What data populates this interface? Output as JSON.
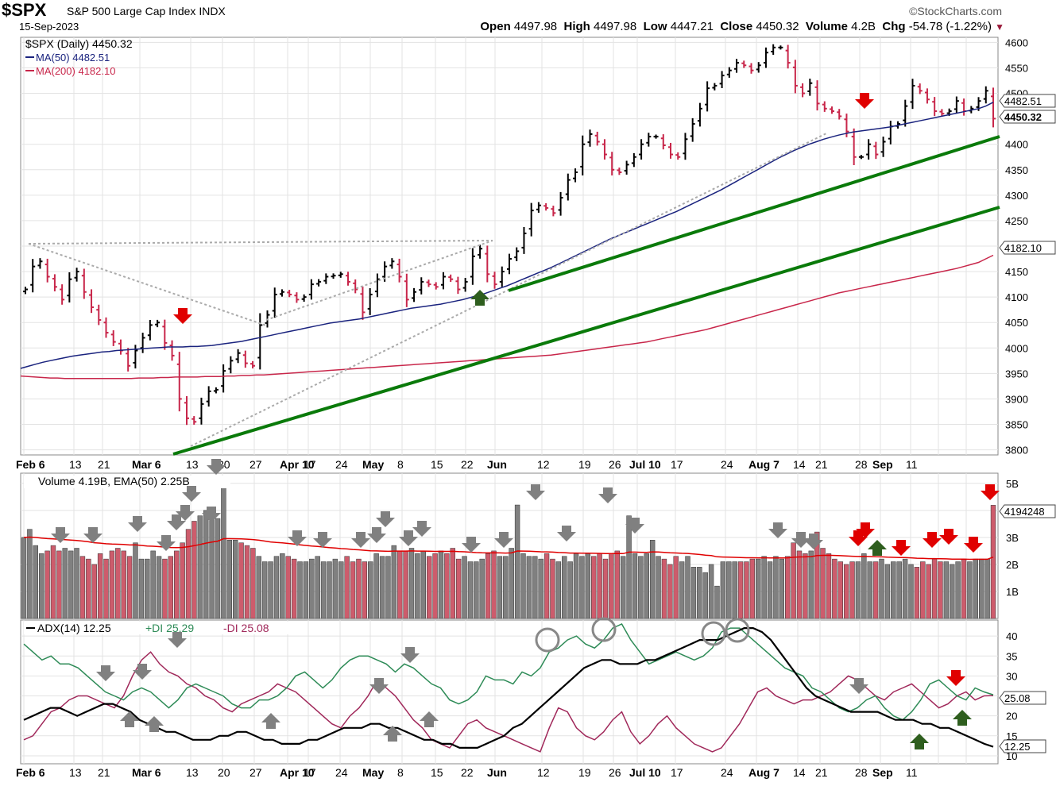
{
  "header": {
    "symbol": "$SPX",
    "name": "S&P 500 Large Cap Index",
    "exchange": "INDX",
    "date": "15-Sep-2023",
    "brand": "©StockCharts.com",
    "open_label": "Open",
    "open": "4497.98",
    "high_label": "High",
    "high": "4497.98",
    "low_label": "Low",
    "low": "4447.21",
    "close_label": "Close",
    "close": "4450.32",
    "volume_label": "Volume",
    "volume": "4.2B",
    "chg_label": "Chg",
    "chg": "-54.78 (-1.22%)"
  },
  "colors": {
    "up": "#000000",
    "down": "#c8264a",
    "ma50": "#1a237e",
    "ma200": "#c8264a",
    "trend": "#0a7a0a",
    "adx": "#000000",
    "plus_di": "#2e8b57",
    "minus_di": "#a0285a",
    "vol_up": "#808080",
    "vol_down": "#cd5c6c"
  },
  "chart_data": [
    {
      "type": "ohlc",
      "legend": [
        "$SPX (Daily) 4450.32",
        "MA(50) 4482.51",
        "MA(200) 4182.10"
      ],
      "x_ticks": [
        "Feb 6",
        "13",
        "21",
        "Mar 6",
        "13",
        "20",
        "27",
        "Apr 10",
        "17",
        "24",
        "May",
        "8",
        "15",
        "22",
        "Jun",
        "12",
        "19",
        "26",
        "Jul 10",
        "17",
        "24",
        "Aug 7",
        "14",
        "21",
        "28",
        "Sep",
        "11"
      ],
      "y_ticks": [
        3800,
        3850,
        3900,
        3950,
        4000,
        4050,
        4100,
        4150,
        4200,
        4250,
        4300,
        4350,
        4400,
        4450,
        4500,
        4550,
        4600
      ],
      "ylim": [
        3790,
        4610
      ],
      "price_tags": [
        "4482.51",
        "4450.32",
        "4182.10"
      ],
      "closes": [
        4115,
        4160,
        4170,
        4140,
        4120,
        4095,
        4135,
        4150,
        4110,
        4080,
        4055,
        4030,
        4012,
        3995,
        3965,
        3995,
        4020,
        4045,
        4050,
        4010,
        3985,
        3900,
        3862,
        3855,
        3890,
        3915,
        3918,
        3955,
        3975,
        3990,
        3970,
        3965,
        4045,
        4065,
        4105,
        4110,
        4105,
        4095,
        4100,
        4125,
        4130,
        4140,
        4142,
        4145,
        4130,
        4115,
        4070,
        4105,
        4135,
        4160,
        4170,
        4140,
        4095,
        4110,
        4130,
        4125,
        4120,
        4140,
        4135,
        4115,
        4130,
        4180,
        4195,
        4145,
        4125,
        4150,
        4175,
        4190,
        4225,
        4270,
        4280,
        4275,
        4265,
        4295,
        4330,
        4345,
        4400,
        4420,
        4405,
        4380,
        4350,
        4345,
        4360,
        4375,
        4400,
        4415,
        4415,
        4398,
        4380,
        4375,
        4410,
        4440,
        4470,
        4510,
        4515,
        4535,
        4545,
        4560,
        4555,
        4545,
        4555,
        4580,
        4590,
        4590,
        4560,
        4515,
        4500,
        4520,
        4480,
        4470,
        4465,
        4455,
        4425,
        4375,
        4375,
        4400,
        4380,
        4405,
        4435,
        4440,
        4475,
        4515,
        4505,
        4488,
        4465,
        4460,
        4465,
        4485,
        4465,
        4470,
        4485,
        4505,
        4450.32
      ],
      "ma50": [
        3960,
        3964,
        3968,
        3972,
        3975,
        3978,
        3981,
        3984,
        3986,
        3988,
        3990,
        3992,
        3993,
        3995,
        3996,
        3997,
        3998,
        3999,
        4000,
        4001,
        4002,
        4002,
        4002,
        4003,
        4003,
        4004,
        4005,
        4007,
        4009,
        4011,
        4013,
        4016,
        4019,
        4022,
        4025,
        4028,
        4031,
        4034,
        4037,
        4040,
        4043,
        4046,
        4049,
        4051,
        4053,
        4055,
        4057,
        4060,
        4063,
        4066,
        4069,
        4072,
        4075,
        4078,
        4080,
        4082,
        4084,
        4086,
        4089,
        4092,
        4095,
        4099,
        4103,
        4107,
        4112,
        4117,
        4122,
        4128,
        4134,
        4140,
        4146,
        4152,
        4158,
        4165,
        4172,
        4179,
        4186,
        4193,
        4200,
        4207,
        4214,
        4220,
        4226,
        4232,
        4238,
        4244,
        4250,
        4256,
        4262,
        4268,
        4275,
        4282,
        4289,
        4296,
        4303,
        4310,
        4318,
        4326,
        4334,
        4342,
        4350,
        4358,
        4366,
        4374,
        4381,
        4388,
        4394,
        4400,
        4405,
        4410,
        4414,
        4418,
        4421,
        4424,
        4426,
        4428,
        4430,
        4432,
        4434,
        4437,
        4440,
        4443,
        4446,
        4449,
        4452,
        4455,
        4458,
        4461,
        4464,
        4467,
        4470,
        4475,
        4482.51
      ],
      "ma200": [
        3945,
        3944,
        3943,
        3942,
        3941,
        3941,
        3940,
        3940,
        3940,
        3940,
        3940,
        3940,
        3940,
        3940,
        3940,
        3940,
        3941,
        3941,
        3941,
        3942,
        3942,
        3943,
        3943,
        3943,
        3943,
        3944,
        3944,
        3944,
        3945,
        3945,
        3946,
        3946,
        3947,
        3947,
        3948,
        3949,
        3950,
        3951,
        3952,
        3953,
        3954,
        3955,
        3956,
        3957,
        3958,
        3959,
        3960,
        3961,
        3962,
        3963,
        3964,
        3965,
        3966,
        3967,
        3968,
        3969,
        3970,
        3971,
        3972,
        3973,
        3974,
        3975,
        3976,
        3977,
        3978,
        3979,
        3980,
        3981,
        3982,
        3983,
        3984,
        3985,
        3986,
        3988,
        3990,
        3992,
        3994,
        3996,
        3998,
        4000,
        4002,
        4004,
        4006,
        4008,
        4010,
        4012,
        4015,
        4018,
        4021,
        4024,
        4027,
        4030,
        4033,
        4036,
        4040,
        4044,
        4048,
        4052,
        4056,
        4060,
        4064,
        4068,
        4072,
        4076,
        4080,
        4084,
        4088,
        4092,
        4096,
        4100,
        4104,
        4108,
        4111,
        4114,
        4117,
        4120,
        4123,
        4126,
        4129,
        4132,
        4135,
        4138,
        4141,
        4144,
        4147,
        4150,
        4153,
        4156,
        4160,
        4164,
        4168,
        4175,
        4182.1
      ]
    },
    {
      "type": "bar",
      "legend": "Volume 4.19B, EMA(50) 2.25B",
      "y_ticks": [
        "1B",
        "2B",
        "3B",
        "4B",
        "5B"
      ],
      "ylim": [
        0,
        5.2
      ],
      "value_tag": "4194248",
      "values": [
        3.0,
        3.3,
        2.7,
        2.4,
        2.5,
        2.7,
        2.5,
        2.6,
        2.5,
        2.6,
        2.3,
        2.2,
        2.0,
        2.4,
        2.2,
        2.5,
        2.6,
        2.5,
        2.3,
        2.8,
        2.2,
        2.2,
        2.5,
        2.3,
        2.2,
        2.3,
        2.5,
        2.8,
        3.3,
        3.6,
        3.8,
        4.0,
        3.7,
        3.7,
        5.2,
        2.9,
        2.9,
        2.8,
        2.7,
        2.6,
        2.3,
        2.1,
        2.1,
        2.3,
        2.4,
        2.3,
        2.2,
        2.1,
        2.1,
        2.2,
        2.3,
        2.1,
        2.1,
        2.2,
        2.1,
        2.3,
        2.1,
        2.2,
        2.1,
        2.1,
        2.4,
        2.3,
        2.3,
        2.7,
        2.5,
        2.5,
        2.6,
        2.4,
        2.5,
        2.3,
        2.4,
        2.5,
        2.4,
        2.6,
        2.2,
        2.3,
        2.1,
        2.1,
        2.2,
        2.4,
        2.5,
        2.3,
        2.3,
        2.6,
        4.2,
        2.4,
        2.3,
        2.3,
        2.2,
        2.4,
        2.2,
        2.1,
        2.3,
        2.1,
        2.4,
        2.3,
        2.4,
        2.3,
        2.4,
        2.2,
        2.4,
        2.5,
        2.3,
        3.8,
        2.4,
        2.3,
        2.4,
        2.9,
        2.3,
        2.2,
        2.0,
        2.3,
        2.1,
        2.3,
        1.9,
        1.9,
        1.7,
        2.0,
        1.2,
        2.1,
        2.1,
        2.1,
        2.1,
        2.1,
        2.2,
        2.2,
        2.3,
        2.1,
        2.3,
        2.2,
        2.3,
        2.8,
        2.5,
        2.4,
        2.5,
        3.2,
        2.6,
        2.4,
        2.2,
        2.1,
        2.0,
        2.1,
        2.1,
        2.4,
        2.1,
        2.1,
        2.2,
        2.0,
        2.1,
        2.1,
        2.2,
        2.0,
        1.9,
        2.1,
        2.0,
        2.2,
        2.1,
        2.1,
        2.0,
        2.1,
        2.2,
        2.1,
        2.2,
        2.2,
        2.2,
        4.19
      ]
    },
    {
      "type": "line",
      "legend": [
        "ADX(14) 12.25",
        "+DI 25.29",
        "-DI 25.08"
      ],
      "y_ticks": [
        10,
        15,
        20,
        25,
        30,
        35,
        40
      ],
      "ylim": [
        8,
        44
      ],
      "value_tags": [
        "25.08",
        "12.25"
      ],
      "series": [
        {
          "name": "ADX(14) 12.25",
          "values": [
            19,
            20,
            21,
            22,
            22,
            21,
            20,
            21,
            22,
            23,
            23,
            22,
            21,
            19,
            18,
            17,
            16,
            16,
            15,
            14,
            14,
            14,
            15,
            15,
            16,
            16,
            15,
            14,
            14,
            13,
            13,
            13,
            14,
            14,
            15,
            16,
            17,
            17,
            17,
            18,
            18,
            17,
            17,
            16,
            15,
            14,
            14,
            13,
            13,
            12,
            12,
            12,
            13,
            14,
            15,
            17,
            18,
            20,
            22,
            24,
            26,
            28,
            30,
            32,
            33,
            34,
            34,
            33,
            33,
            33,
            34,
            34,
            35,
            36,
            37,
            38,
            39,
            39,
            39,
            40,
            41,
            42,
            42,
            41,
            39,
            36,
            33,
            30,
            27,
            25,
            24,
            23,
            22,
            21,
            21,
            21,
            21,
            20,
            19,
            19,
            19,
            18,
            18,
            17,
            17,
            16,
            15,
            14,
            13,
            12.25
          ]
        },
        {
          "name": "+DI 25.29",
          "values": [
            38,
            36,
            34,
            35,
            33,
            33,
            32,
            30,
            28,
            26,
            25,
            24,
            26,
            27,
            26,
            24,
            22,
            24,
            27,
            28,
            27,
            26,
            25,
            23,
            22,
            22,
            24,
            24,
            25,
            27,
            30,
            31,
            29,
            27,
            29,
            32,
            34,
            35,
            35,
            34,
            33,
            31,
            33,
            32,
            30,
            28,
            27,
            24,
            23,
            24,
            26,
            30,
            29,
            29,
            28,
            31,
            30,
            32,
            36,
            37,
            39,
            40,
            38,
            37,
            39,
            42,
            43,
            39,
            36,
            33,
            34,
            35,
            36,
            35,
            34,
            35,
            37,
            41,
            42,
            42,
            40,
            38,
            36,
            34,
            32,
            31,
            30,
            27,
            26,
            24,
            22,
            21,
            22,
            24,
            25,
            22,
            20,
            19,
            21,
            24,
            28,
            29,
            27,
            25,
            24,
            27,
            26,
            25.29
          ]
        },
        {
          "name": "-DI 25.08",
          "values": [
            14,
            15,
            18,
            21,
            22,
            24,
            25,
            25,
            24,
            23,
            22,
            25,
            30,
            34,
            36,
            33,
            31,
            30,
            28,
            27,
            25,
            24,
            22,
            21,
            23,
            24,
            25,
            26,
            28,
            27,
            26,
            24,
            22,
            20,
            18,
            17,
            20,
            22,
            25,
            29,
            27,
            25,
            22,
            19,
            17,
            14,
            13,
            12,
            15,
            18,
            19,
            17,
            16,
            15,
            14,
            13,
            12,
            11,
            17,
            22,
            21,
            17,
            15,
            14,
            16,
            19,
            21,
            16,
            13,
            15,
            18,
            20,
            17,
            15,
            13,
            12,
            11,
            12,
            15,
            18,
            22,
            26,
            27,
            25,
            24,
            23,
            24,
            24,
            25,
            26,
            28,
            30,
            29,
            27,
            25,
            24,
            26,
            27,
            28,
            26,
            24,
            22,
            23,
            25,
            26,
            24,
            25,
            25.08
          ]
        }
      ]
    }
  ]
}
